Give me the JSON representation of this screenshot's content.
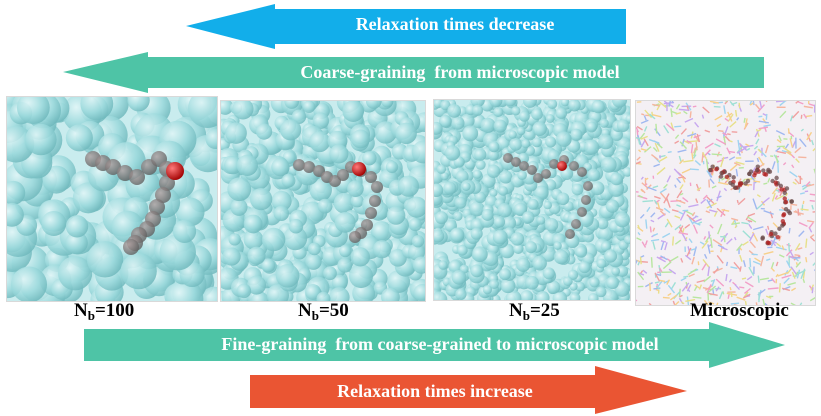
{
  "arrows": {
    "relax_decrease": "Relaxation times decrease",
    "coarse_graining": "Coarse-graining  from microscopic model",
    "fine_graining": "Fine-graining  from coarse-grained to microscopic model",
    "relax_increase": "Relaxation times increase"
  },
  "panels": [
    {
      "label_base": "N",
      "label_sub": "b",
      "label_rest": "=100"
    },
    {
      "label_base": "N",
      "label_sub": "b",
      "label_rest": "=50"
    },
    {
      "label_base": "N",
      "label_sub": "b",
      "label_rest": "=25"
    },
    {
      "label_base": "Microscopic",
      "label_sub": "",
      "label_rest": ""
    }
  ],
  "colors": {
    "blue_arrow": "#12aeea",
    "teal_arrow": "#4ec4a6",
    "red_arrow": "#ea5533",
    "bead_cyan": "#9bd9dc",
    "chain_gray": "#5e5e5e",
    "chain_end_red": "#e0191a"
  }
}
